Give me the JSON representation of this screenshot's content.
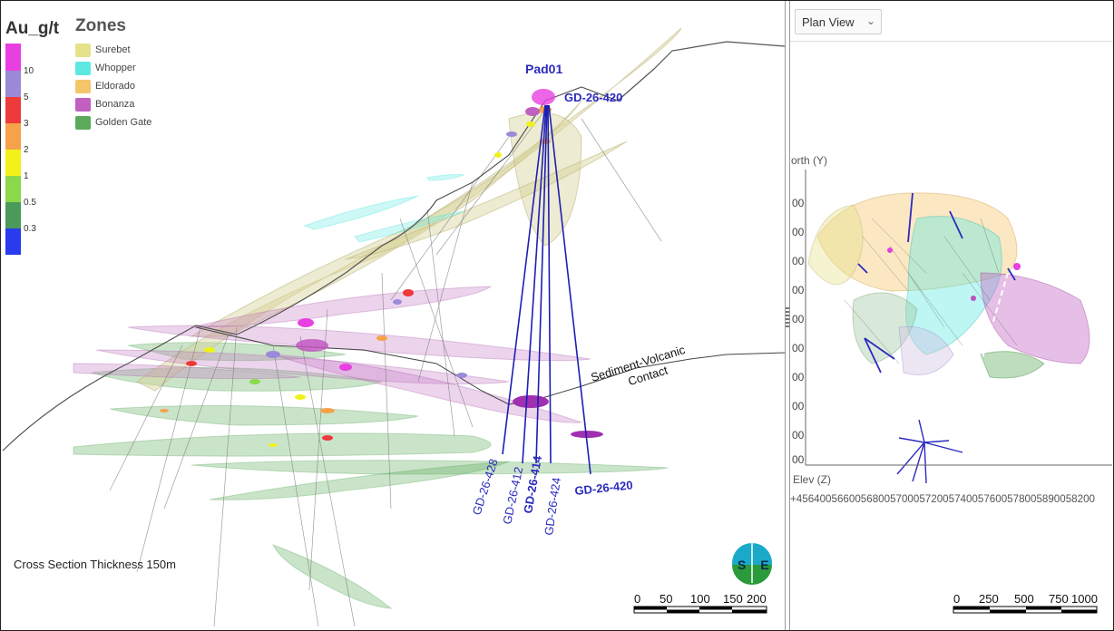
{
  "grade_legend": {
    "title": "Au_g/t",
    "bins": [
      {
        "label": "10",
        "color": "#e840e0"
      },
      {
        "label": "5",
        "color": "#9a8ad8"
      },
      {
        "label": "3",
        "color": "#ee3a3a"
      },
      {
        "label": "2",
        "color": "#f5a24a"
      },
      {
        "label": "1",
        "color": "#f2f21a"
      },
      {
        "label": "0.5",
        "color": "#8bd84a"
      },
      {
        "label": "0.3",
        "color": "#4a9a5a"
      },
      {
        "label": "",
        "color": "#2a3aee"
      }
    ]
  },
  "zones_legend": {
    "title": "Zones",
    "items": [
      {
        "label": "Surebet",
        "color": "#e5e28a"
      },
      {
        "label": "Whopper",
        "color": "#5de8e0"
      },
      {
        "label": "Eldorado",
        "color": "#f5c56a"
      },
      {
        "label": "Bonanza",
        "color": "#c060c0"
      },
      {
        "label": "Golden Gate",
        "color": "#5aaa5a"
      }
    ]
  },
  "section": {
    "pad_label": "Pad01",
    "collar_hole_label": "GD-26-420",
    "contact_label_line1": "Sediment-Volcanic",
    "contact_label_line2": "Contact",
    "holes": [
      {
        "id": "GD-26-428",
        "bold": false
      },
      {
        "id": "GD-26-412",
        "bold": false
      },
      {
        "id": "GD-26-414",
        "bold": true
      },
      {
        "id": "GD-26-424",
        "bold": false
      },
      {
        "id": "GD-26-420",
        "bold": true
      }
    ],
    "thickness_note": "Cross Section Thickness 150m",
    "scale_labels": [
      "0",
      "50",
      "100",
      "150",
      "200"
    ],
    "logo_text": "S E"
  },
  "plan_view": {
    "view_selector": "Plan View",
    "north_axis_label": "orth (Y)",
    "elev_axis_label": "Elev (Z)",
    "y_tick_labels": [
      "00",
      "00",
      "00",
      "00",
      "00",
      "00",
      "00",
      "00",
      "00",
      "00"
    ],
    "x_tick_labels_text": "+456400566005680057000572005740057600578005890058200",
    "scale_labels": [
      "0",
      "250",
      "500",
      "750",
      "1000"
    ]
  },
  "colors": {
    "drillhole_blue": "#1e1eb4",
    "topo_line": "#555555"
  }
}
